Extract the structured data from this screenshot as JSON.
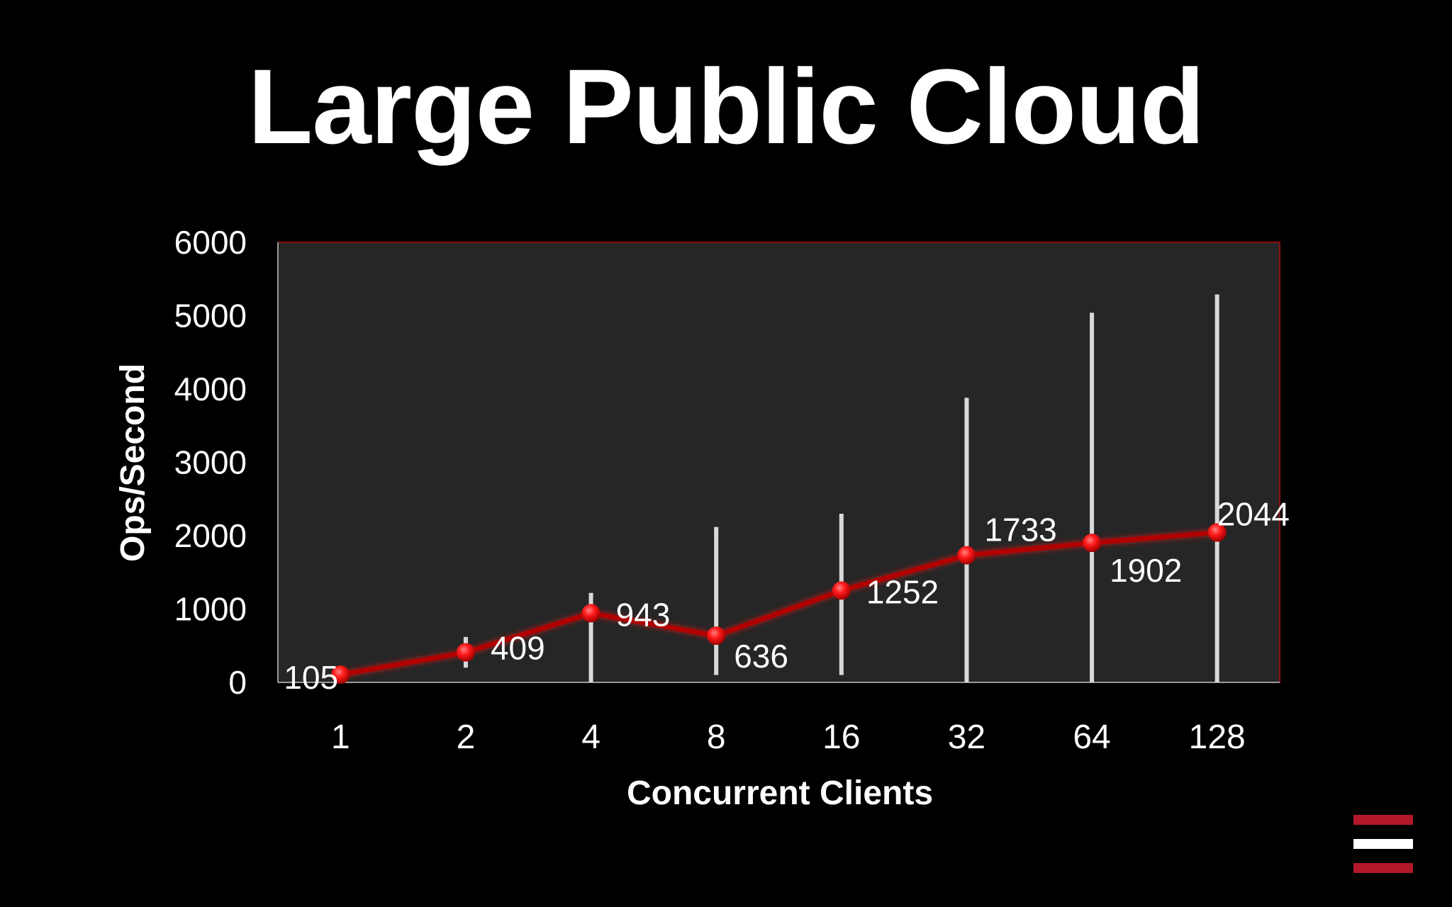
{
  "slide": {
    "title": "Large Public Cloud"
  },
  "colors": {
    "background": "#000000",
    "plot_area": "#262626",
    "plot_border": "#8b1010",
    "series_line": "#b00000",
    "marker": "#ff1a1a",
    "error_bar": "#d9d9d9",
    "text": "#ffffff",
    "logo_red": "#b3182a",
    "logo_white": "#ffffff"
  },
  "chart_data": {
    "type": "line",
    "title": "",
    "xlabel": "Concurrent Clients",
    "ylabel": "Ops/Second",
    "categories": [
      "1",
      "2",
      "4",
      "8",
      "16",
      "32",
      "64",
      "128"
    ],
    "series": [
      {
        "values": [
          105,
          409,
          943,
          636,
          1252,
          1733,
          1902,
          2044
        ],
        "error_bar_low": [
          0,
          200,
          0,
          100,
          100,
          0,
          0,
          0
        ],
        "error_bar_high": [
          0,
          620,
          1220,
          2120,
          2300,
          3880,
          5040,
          5290
        ]
      }
    ],
    "data_labels": [
      "105",
      "409",
      "943",
      "636",
      "1252",
      "1733",
      "1902",
      "2044"
    ],
    "ylim": [
      0,
      6000
    ],
    "yticks": [
      "0",
      "1000",
      "2000",
      "3000",
      "4000",
      "5000",
      "6000"
    ],
    "grid": false,
    "legend": "none"
  },
  "logo": {
    "icon": "stacked-bars-logo-icon"
  }
}
